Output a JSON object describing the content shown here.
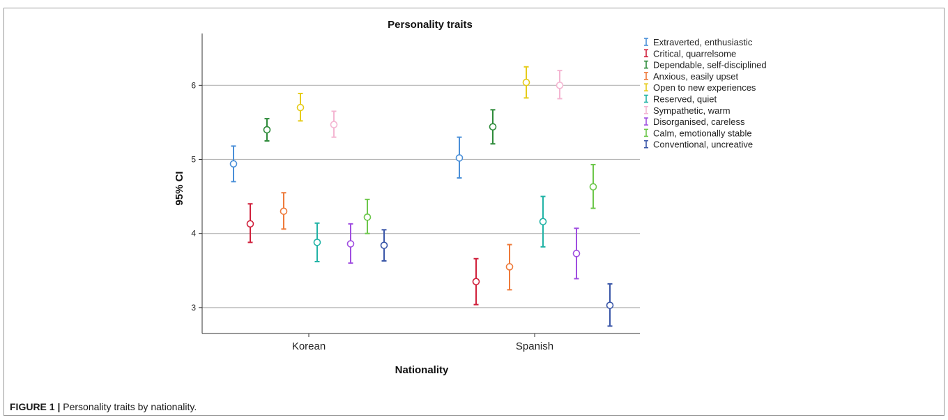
{
  "caption": {
    "label": "FIGURE 1 |",
    "text": "Personality traits by nationality."
  },
  "chart_data": {
    "type": "errorbar",
    "title": "Personality traits",
    "xlabel": "Nationality",
    "ylabel": "95% CI",
    "ylim": [
      2.65,
      6.7
    ],
    "yticks": [
      3,
      4,
      5,
      6
    ],
    "grid": "horizontal",
    "legend_position": "right",
    "categories": [
      "Korean",
      "Spanish"
    ],
    "series": [
      {
        "name": "Extraverted, enthusiastic",
        "color": "#4a8fd8",
        "values": [
          {
            "mean": 4.94,
            "lower": 4.7,
            "upper": 5.18
          },
          {
            "mean": 5.02,
            "lower": 4.75,
            "upper": 5.3
          }
        ]
      },
      {
        "name": "Critical, quarrelsome",
        "color": "#d0213c",
        "values": [
          {
            "mean": 4.13,
            "lower": 3.88,
            "upper": 4.4
          },
          {
            "mean": 3.35,
            "lower": 3.04,
            "upper": 3.66
          }
        ]
      },
      {
        "name": "Dependable, self-disciplined",
        "color": "#2e8b3a",
        "values": [
          {
            "mean": 5.4,
            "lower": 5.25,
            "upper": 5.55
          },
          {
            "mean": 5.44,
            "lower": 5.21,
            "upper": 5.67
          }
        ]
      },
      {
        "name": "Anxious, easily upset",
        "color": "#ee7a3a",
        "values": [
          {
            "mean": 4.3,
            "lower": 4.06,
            "upper": 4.55
          },
          {
            "mean": 3.55,
            "lower": 3.24,
            "upper": 3.85
          }
        ]
      },
      {
        "name": "Open to new experiences",
        "color": "#e6cc1a",
        "values": [
          {
            "mean": 5.7,
            "lower": 5.52,
            "upper": 5.89
          },
          {
            "mean": 6.04,
            "lower": 5.83,
            "upper": 6.25
          }
        ]
      },
      {
        "name": "Reserved, quiet",
        "color": "#22b3a6",
        "values": [
          {
            "mean": 3.88,
            "lower": 3.62,
            "upper": 4.14
          },
          {
            "mean": 4.16,
            "lower": 3.82,
            "upper": 4.5
          }
        ]
      },
      {
        "name": "Sympathetic, warm",
        "color": "#f4b6d2",
        "values": [
          {
            "mean": 5.47,
            "lower": 5.3,
            "upper": 5.65
          },
          {
            "mean": 6.0,
            "lower": 5.82,
            "upper": 6.2
          }
        ]
      },
      {
        "name": "Disorganised, careless",
        "color": "#a04ee0",
        "values": [
          {
            "mean": 3.86,
            "lower": 3.6,
            "upper": 4.13
          },
          {
            "mean": 3.73,
            "lower": 3.39,
            "upper": 4.07
          }
        ]
      },
      {
        "name": "Calm, emotionally stable",
        "color": "#6cc74a",
        "values": [
          {
            "mean": 4.22,
            "lower": 4.0,
            "upper": 4.46
          },
          {
            "mean": 4.63,
            "lower": 4.34,
            "upper": 4.93
          }
        ]
      },
      {
        "name": "Conventional, uncreative",
        "color": "#3b57a8",
        "values": [
          {
            "mean": 3.84,
            "lower": 3.63,
            "upper": 4.05
          },
          {
            "mean": 3.03,
            "lower": 2.75,
            "upper": 3.32
          }
        ]
      }
    ]
  }
}
